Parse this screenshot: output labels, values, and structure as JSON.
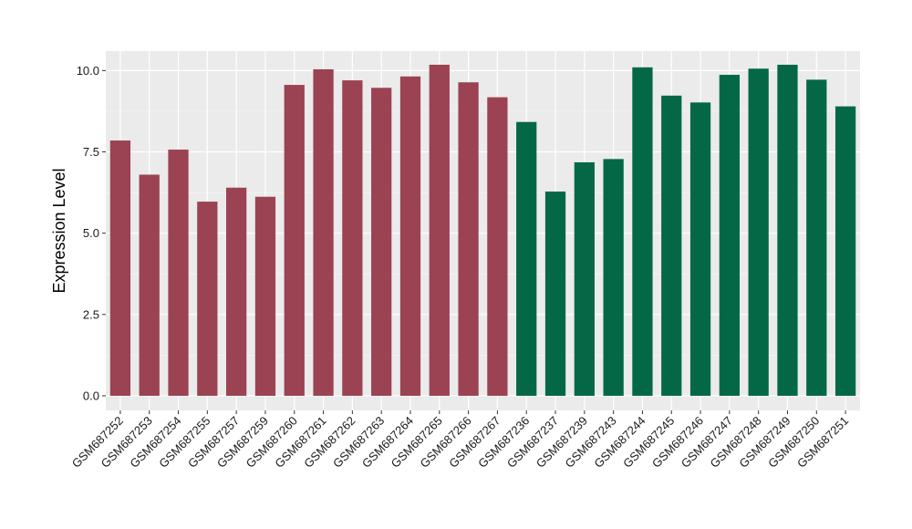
{
  "chart_data": {
    "type": "bar",
    "title": "",
    "xlabel": "",
    "ylabel": "Expression Level",
    "ylim": [
      -0.45,
      10.6
    ],
    "yticks": [
      0.0,
      2.5,
      5.0,
      7.5,
      10.0
    ],
    "ytick_labels": [
      "0.0",
      "2.5",
      "5.0",
      "7.5",
      "10.0"
    ],
    "grid": true,
    "legend": "none",
    "panel_background": "#EBEBEB",
    "categories": [
      "GSM687252",
      "GSM687253",
      "GSM687254",
      "GSM687255",
      "GSM687257",
      "GSM687259",
      "GSM687260",
      "GSM687261",
      "GSM687262",
      "GSM687263",
      "GSM687264",
      "GSM687265",
      "GSM687266",
      "GSM687267",
      "GSM687236",
      "GSM687237",
      "GSM687239",
      "GSM687243",
      "GSM687244",
      "GSM687245",
      "GSM687246",
      "GSM687247",
      "GSM687248",
      "GSM687249",
      "GSM687250",
      "GSM687251"
    ],
    "values": [
      7.85,
      6.8,
      7.57,
      5.97,
      6.4,
      6.12,
      9.56,
      10.04,
      9.7,
      9.47,
      9.82,
      10.18,
      9.64,
      9.18,
      8.42,
      6.28,
      7.18,
      7.28,
      10.1,
      9.23,
      9.02,
      9.87,
      10.06,
      10.18,
      9.72,
      8.9
    ],
    "colors": [
      "#9B4352",
      "#9B4352",
      "#9B4352",
      "#9B4352",
      "#9B4352",
      "#9B4352",
      "#9B4352",
      "#9B4352",
      "#9B4352",
      "#9B4352",
      "#9B4352",
      "#9B4352",
      "#9B4352",
      "#9B4352",
      "#046847",
      "#046847",
      "#046847",
      "#046847",
      "#046847",
      "#046847",
      "#046847",
      "#046847",
      "#046847",
      "#046847",
      "#046847",
      "#046847"
    ]
  }
}
